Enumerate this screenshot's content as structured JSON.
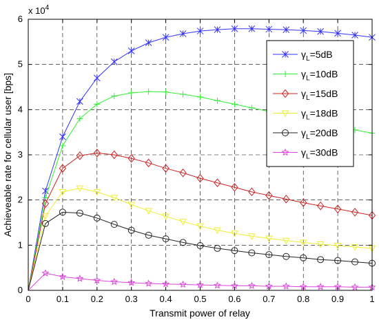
{
  "chart_data": {
    "type": "line",
    "title": "",
    "xlabel": "Transmit power of relay",
    "ylabel": "Achieveable rate for cellular user  [bps]",
    "exponent_label": "x 10",
    "exponent_power": "4",
    "xlim": [
      0,
      1
    ],
    "ylim": [
      0,
      6
    ],
    "xticks": [
      "0",
      "0.1",
      "0.2",
      "0.3",
      "0.4",
      "0.5",
      "0.6",
      "0.7",
      "0.8",
      "0.9",
      "1"
    ],
    "yticks": [
      "0",
      "1",
      "2",
      "3",
      "4",
      "5",
      "6"
    ],
    "grid": true,
    "legend_position": "top-right",
    "x": [
      0,
      0.05,
      0.1,
      0.15,
      0.2,
      0.25,
      0.3,
      0.35,
      0.4,
      0.45,
      0.5,
      0.55,
      0.6,
      0.65,
      0.7,
      0.75,
      0.8,
      0.85,
      0.9,
      0.95,
      1.0
    ],
    "series": [
      {
        "name_main": "γ",
        "name_sub": "L",
        "name_rest": "=5dB",
        "color": "#3333ff",
        "marker": "x-star",
        "values": [
          0,
          2.2,
          3.4,
          4.18,
          4.7,
          5.06,
          5.3,
          5.48,
          5.6,
          5.68,
          5.74,
          5.77,
          5.79,
          5.79,
          5.78,
          5.77,
          5.75,
          5.73,
          5.69,
          5.65,
          5.6
        ]
      },
      {
        "name_main": "γ",
        "name_sub": "L",
        "name_rest": "=10dB",
        "color": "#33ee33",
        "marker": "plus",
        "values": [
          0,
          2.05,
          3.2,
          3.8,
          4.12,
          4.3,
          4.37,
          4.4,
          4.39,
          4.34,
          4.28,
          4.2,
          4.12,
          4.04,
          3.96,
          3.87,
          3.79,
          3.7,
          3.62,
          3.55,
          3.48
        ]
      },
      {
        "name_main": "γ",
        "name_sub": "L",
        "name_rest": "=15dB",
        "color": "#cc2222",
        "marker": "diamond",
        "values": [
          0,
          1.92,
          2.7,
          2.98,
          3.04,
          3.0,
          2.92,
          2.82,
          2.7,
          2.6,
          2.48,
          2.38,
          2.28,
          2.18,
          2.1,
          2.02,
          1.94,
          1.87,
          1.8,
          1.73,
          1.66
        ]
      },
      {
        "name_main": "γ",
        "name_sub": "L",
        "name_rest": "=18dB",
        "color": "#eeee33",
        "marker": "triangle-down",
        "values": [
          0,
          1.65,
          2.18,
          2.26,
          2.18,
          2.05,
          1.9,
          1.76,
          1.64,
          1.52,
          1.42,
          1.33,
          1.26,
          1.2,
          1.15,
          1.1,
          1.06,
          1.02,
          0.99,
          0.96,
          0.93
        ]
      },
      {
        "name_main": "γ",
        "name_sub": "L",
        "name_rest": "=20dB",
        "color": "#222222",
        "marker": "circle",
        "values": [
          0,
          1.48,
          1.73,
          1.71,
          1.6,
          1.46,
          1.33,
          1.22,
          1.14,
          1.06,
          0.99,
          0.93,
          0.88,
          0.83,
          0.79,
          0.75,
          0.72,
          0.68,
          0.66,
          0.63,
          0.6
        ]
      },
      {
        "name_main": "γ",
        "name_sub": "L",
        "name_rest": "=30dB",
        "color": "#dd44dd",
        "marker": "star",
        "values": [
          0,
          0.38,
          0.3,
          0.26,
          0.22,
          0.19,
          0.17,
          0.15,
          0.14,
          0.13,
          0.12,
          0.11,
          0.1,
          0.1,
          0.09,
          0.09,
          0.08,
          0.08,
          0.08,
          0.07,
          0.07
        ]
      }
    ]
  }
}
